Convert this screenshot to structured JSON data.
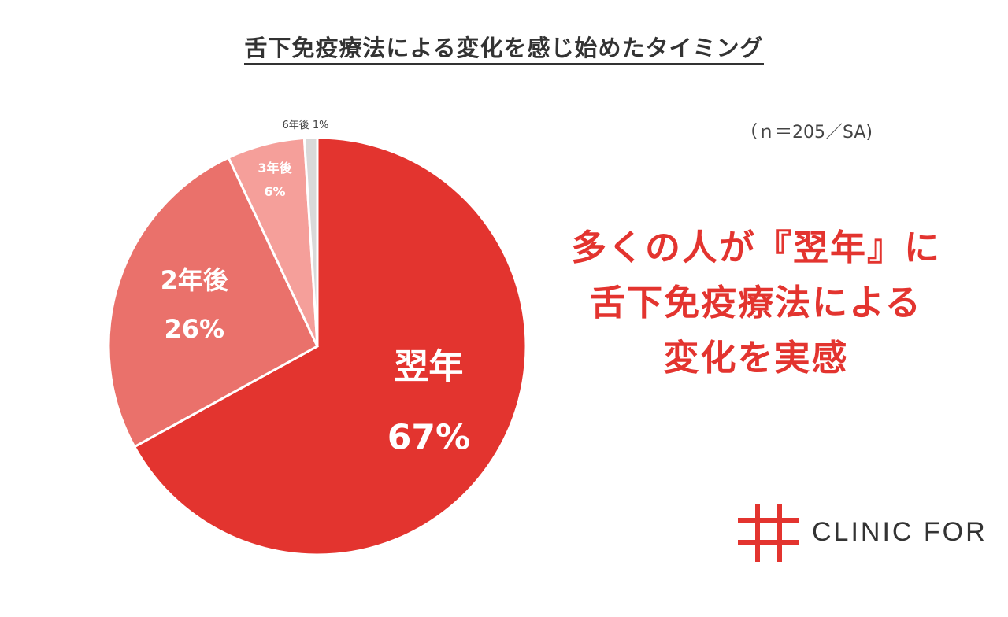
{
  "title": "舌下免疫療法による変化を感じ始めたタイミング",
  "sample_note": "（ｎ＝205／SA)",
  "headline": {
    "line1": "多くの人が『翌年』に",
    "line2": "舌下免疫療法による",
    "line3": "変化を実感"
  },
  "brand": {
    "name": "CLINIC FOR",
    "accent_color": "#e3342f"
  },
  "chart_data": {
    "type": "pie",
    "title": "舌下免疫療法による変化を感じ始めたタイミング",
    "slices": [
      {
        "label": "翌年",
        "percent_label": "67%",
        "value": 67,
        "color": "#e3342f"
      },
      {
        "label": "2年後",
        "percent_label": "26%",
        "value": 26,
        "color": "#ea716b"
      },
      {
        "label": "3年後",
        "percent_label": "6%",
        "value": 6,
        "color": "#f59f9a"
      },
      {
        "label": "6年後",
        "percent_label": "1%",
        "value": 1,
        "color": "#d9d9d9"
      }
    ]
  }
}
